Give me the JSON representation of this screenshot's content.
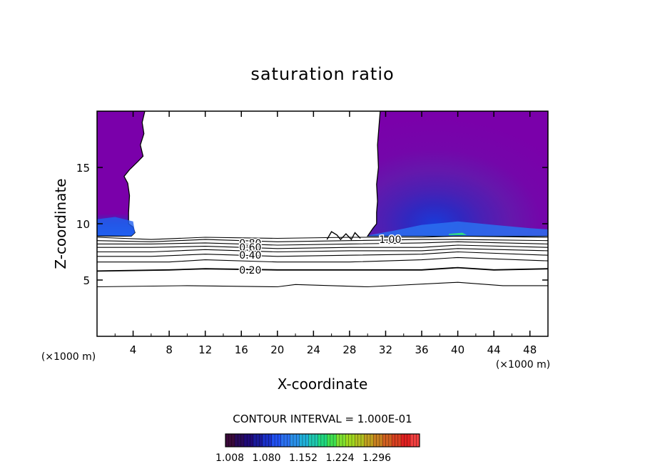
{
  "chart_data": {
    "type": "contour",
    "title": "saturation ratio",
    "xlabel": "X-coordinate",
    "ylabel": "Z-coordinate",
    "x_unit_left": "(×1000 m)",
    "x_unit_right": "(×1000 m)",
    "xlim": [
      0,
      50
    ],
    "ylim": [
      0,
      20
    ],
    "x_ticks": [
      "4",
      "8",
      "12",
      "16",
      "20",
      "24",
      "28",
      "32",
      "36",
      "40",
      "44",
      "48"
    ],
    "y_ticks": [
      "5",
      "10",
      "15"
    ],
    "contour_interval_text": "CONTOUR INTERVAL = 1.000E-01",
    "contour_labels": [
      {
        "text": "0.80",
        "x": 17.0,
        "z": 8.3
      },
      {
        "text": "0.60",
        "x": 17.0,
        "z": 7.9
      },
      {
        "text": "0.40",
        "x": 17.0,
        "z": 7.2
      },
      {
        "text": "0.20",
        "x": 17.0,
        "z": 5.9
      },
      {
        "text": "1.00",
        "x": 32.5,
        "z": 8.6
      }
    ],
    "contour_lines": [
      {
        "level": 0.1,
        "points": [
          [
            0,
            4.4
          ],
          [
            10,
            4.5
          ],
          [
            20,
            4.4
          ],
          [
            22,
            4.6
          ],
          [
            30,
            4.4
          ],
          [
            40,
            4.8
          ],
          [
            45,
            4.5
          ],
          [
            50,
            4.5
          ]
        ]
      },
      {
        "level": 0.2,
        "points": [
          [
            0,
            5.8
          ],
          [
            8,
            5.9
          ],
          [
            12,
            6.0
          ],
          [
            20,
            5.9
          ],
          [
            28,
            5.9
          ],
          [
            36,
            5.9
          ],
          [
            40,
            6.1
          ],
          [
            44,
            5.9
          ],
          [
            50,
            6.0
          ]
        ]
      },
      {
        "level": 0.3,
        "points": [
          [
            0,
            6.6
          ],
          [
            8,
            6.6
          ],
          [
            12,
            6.8
          ],
          [
            20,
            6.6
          ],
          [
            28,
            6.6
          ],
          [
            36,
            6.8
          ],
          [
            40,
            7.0
          ],
          [
            50,
            6.7
          ]
        ]
      },
      {
        "level": 0.4,
        "points": [
          [
            0,
            7.1
          ],
          [
            6,
            7.1
          ],
          [
            12,
            7.3
          ],
          [
            20,
            7.1
          ],
          [
            28,
            7.2
          ],
          [
            36,
            7.3
          ],
          [
            40,
            7.5
          ],
          [
            50,
            7.2
          ]
        ]
      },
      {
        "level": 0.5,
        "points": [
          [
            0,
            7.5
          ],
          [
            6,
            7.5
          ],
          [
            12,
            7.7
          ],
          [
            20,
            7.5
          ],
          [
            28,
            7.6
          ],
          [
            36,
            7.6
          ],
          [
            40,
            7.8
          ],
          [
            50,
            7.6
          ]
        ]
      },
      {
        "level": 0.6,
        "points": [
          [
            0,
            7.9
          ],
          [
            6,
            7.9
          ],
          [
            12,
            8.0
          ],
          [
            20,
            7.8
          ],
          [
            28,
            7.9
          ],
          [
            36,
            7.9
          ],
          [
            40,
            8.1
          ],
          [
            50,
            7.9
          ]
        ]
      },
      {
        "level": 0.7,
        "points": [
          [
            0,
            8.2
          ],
          [
            6,
            8.2
          ],
          [
            12,
            8.3
          ],
          [
            20,
            8.1
          ],
          [
            28,
            8.2
          ],
          [
            36,
            8.3
          ],
          [
            40,
            8.4
          ],
          [
            50,
            8.2
          ]
        ]
      },
      {
        "level": 0.8,
        "points": [
          [
            0,
            8.5
          ],
          [
            6,
            8.4
          ],
          [
            12,
            8.6
          ],
          [
            20,
            8.4
          ],
          [
            28,
            8.5
          ],
          [
            36,
            8.6
          ],
          [
            40,
            8.6
          ],
          [
            50,
            8.5
          ]
        ]
      },
      {
        "level": 0.9,
        "points": [
          [
            0,
            8.8
          ],
          [
            6,
            8.6
          ],
          [
            12,
            8.8
          ],
          [
            20,
            8.7
          ],
          [
            28,
            8.8
          ],
          [
            36,
            8.8
          ],
          [
            40,
            8.9
          ],
          [
            50,
            8.8
          ]
        ]
      }
    ],
    "supersaturated_regions": [
      {
        "name": "left",
        "points": [
          [
            0,
            20
          ],
          [
            5.3,
            20
          ],
          [
            5.0,
            19
          ],
          [
            5.2,
            18
          ],
          [
            4.8,
            17
          ],
          [
            5.1,
            16
          ],
          [
            4.5,
            15.5
          ],
          [
            3.6,
            14.8
          ],
          [
            3.0,
            14.2
          ],
          [
            3.4,
            13.6
          ],
          [
            3.6,
            12.5
          ],
          [
            3.5,
            11.0
          ],
          [
            3.5,
            10.0
          ],
          [
            4.0,
            9.7
          ],
          [
            4.2,
            9.2
          ],
          [
            3.8,
            8.9
          ],
          [
            0,
            8.9
          ]
        ]
      },
      {
        "name": "right",
        "points": [
          [
            31.4,
            20
          ],
          [
            50,
            20
          ],
          [
            50,
            8.9
          ],
          [
            30.0,
            8.9
          ],
          [
            30.6,
            9.6
          ],
          [
            31.0,
            10.0
          ],
          [
            31.0,
            11.0
          ],
          [
            31.1,
            12.0
          ],
          [
            31.0,
            13.5
          ],
          [
            31.2,
            15.0
          ],
          [
            31.1,
            17.0
          ],
          [
            31.3,
            19.0
          ]
        ]
      }
    ],
    "colorbar": {
      "tick_labels": [
        "1.008",
        "1.080",
        "1.152",
        "1.224",
        "1.296"
      ],
      "colors": [
        "#3a0a3a",
        "#2a0a5a",
        "#200a78",
        "#1a1a9a",
        "#1a30c8",
        "#2050f0",
        "#2a70f0",
        "#2a90e8",
        "#20b0d8",
        "#20c8b0",
        "#20d880",
        "#40e050",
        "#80e030",
        "#a0d820",
        "#b0c020",
        "#c0a020",
        "#c88020",
        "#d06020",
        "#d84020",
        "#e02020",
        "#f04040"
      ],
      "colors_shown": "21 cells from dark purple through blue, cyan, green, olive to red"
    },
    "fill_colors": {
      "purple": "#7a00aa",
      "violet": "#6010b0",
      "indigo": "#4820b8",
      "blue": "#3030c8",
      "bright_blue": "#2060f0",
      "cyan": "#20a0f0",
      "green": "#30e080"
    }
  }
}
